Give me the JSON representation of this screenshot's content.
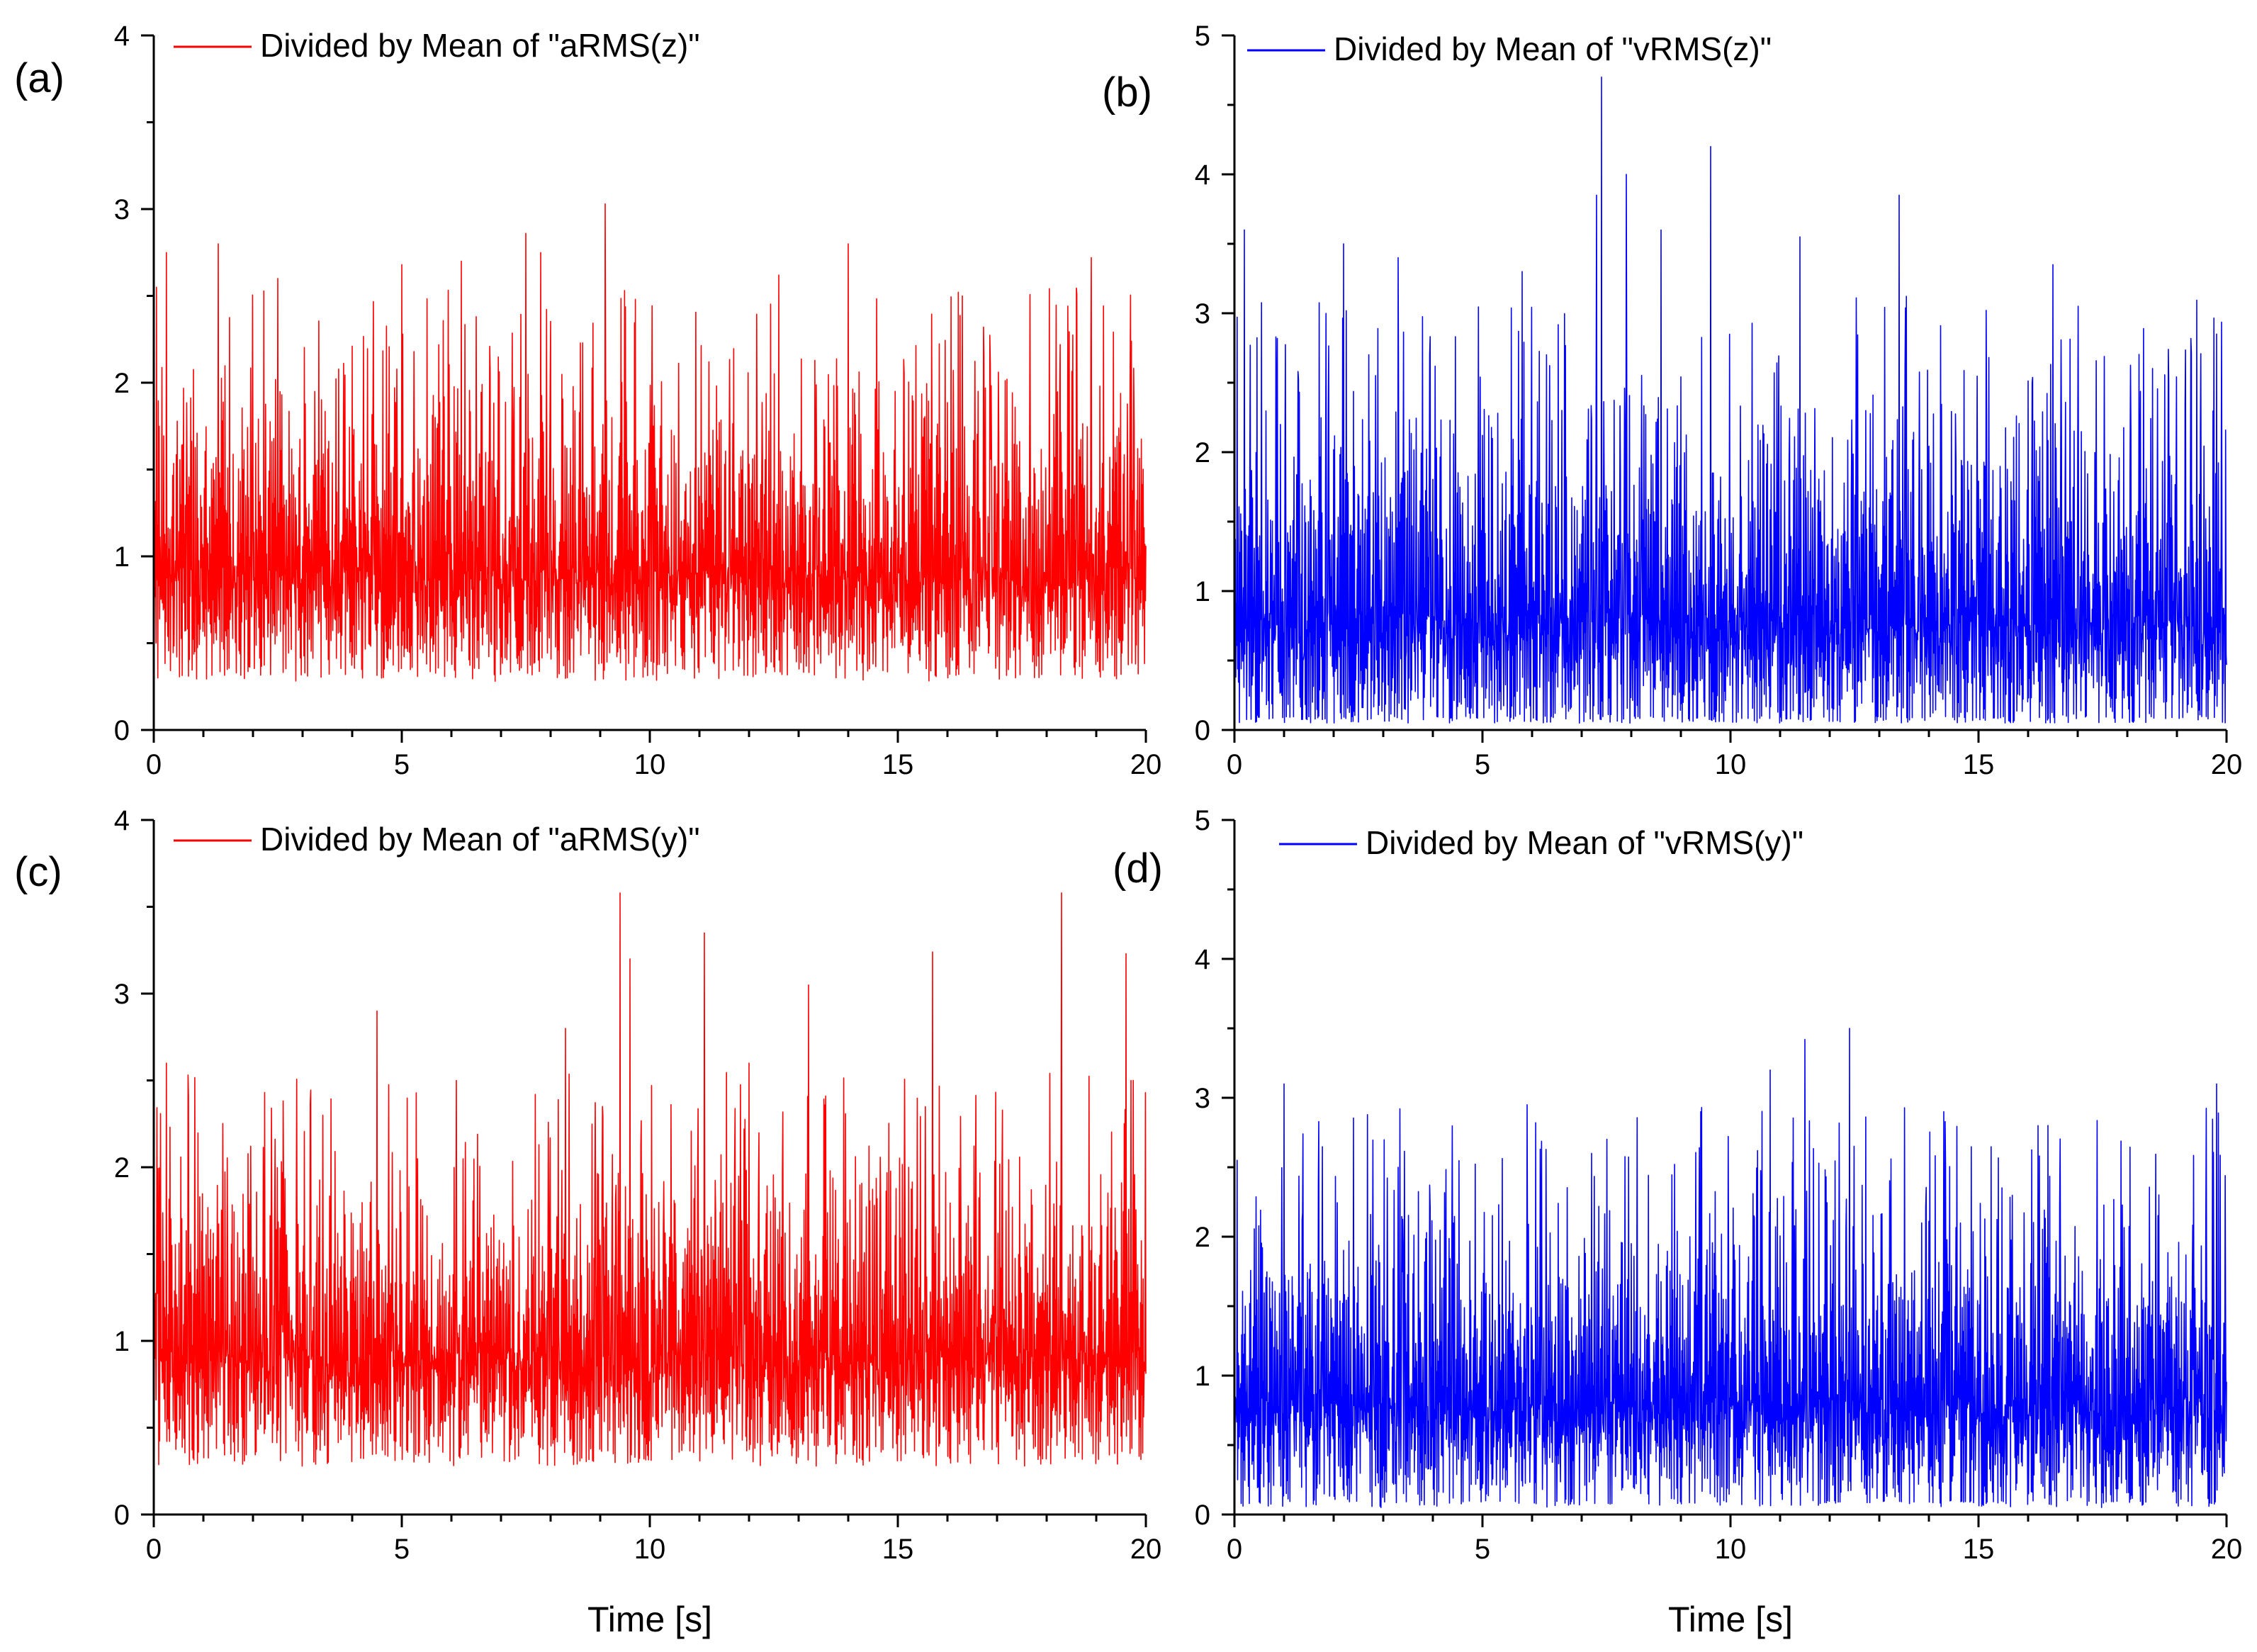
{
  "chart_data": [
    {
      "panel": "(a)",
      "type": "line",
      "color": "#ff0000",
      "legend": "Divided by Mean of \"aRMS(z)\"",
      "xlim": [
        0,
        20
      ],
      "ylim": [
        0,
        4
      ],
      "xticks": [
        "0",
        "5",
        "10",
        "15",
        "20"
      ],
      "yticks": [
        "0",
        "1",
        "2",
        "3",
        "4"
      ],
      "xlabel": "",
      "series": {
        "mean": 0.95,
        "spread": 0.42,
        "floor": 0.27,
        "ceiling": 2.1,
        "seed": 11,
        "peaks": [
          [
            0.25,
            2.75
          ],
          [
            1.3,
            2.8
          ],
          [
            2.5,
            2.6
          ],
          [
            5.0,
            2.68
          ],
          [
            6.2,
            2.7
          ],
          [
            7.5,
            2.86
          ],
          [
            7.8,
            2.75
          ],
          [
            9.1,
            3.03
          ],
          [
            14.0,
            2.8
          ],
          [
            18.9,
            2.72
          ],
          [
            0.05,
            2.55
          ],
          [
            12.6,
            2.62
          ],
          [
            16.3,
            2.5
          ]
        ]
      }
    },
    {
      "panel": "(b)",
      "type": "line",
      "color": "#0000ff",
      "legend": "Divided by Mean of \"vRMS(z)\"",
      "xlim": [
        0,
        20
      ],
      "ylim": [
        0,
        5
      ],
      "xticks": [
        "0",
        "5",
        "10",
        "15",
        "20"
      ],
      "yticks": [
        "0",
        "1",
        "2",
        "3",
        "4",
        "5"
      ],
      "xlabel": "",
      "series": {
        "mean": 0.85,
        "spread": 0.6,
        "floor": 0.05,
        "ceiling": 2.5,
        "seed": 23,
        "peaks": [
          [
            0.2,
            3.6
          ],
          [
            2.2,
            3.5
          ],
          [
            3.3,
            3.4
          ],
          [
            5.8,
            3.3
          ],
          [
            7.4,
            4.7
          ],
          [
            7.9,
            4.0
          ],
          [
            9.6,
            4.2
          ],
          [
            11.4,
            3.55
          ],
          [
            13.4,
            3.85
          ],
          [
            16.5,
            3.35
          ],
          [
            19.8,
            2.85
          ],
          [
            7.3,
            3.85
          ],
          [
            8.6,
            3.6
          ]
        ]
      }
    },
    {
      "panel": "(c)",
      "type": "line",
      "color": "#ff0000",
      "legend": "Divided by Mean of \"aRMS(y)\"",
      "xlim": [
        0,
        20
      ],
      "ylim": [
        0,
        4
      ],
      "xticks": [
        "0",
        "5",
        "10",
        "15",
        "20"
      ],
      "yticks": [
        "0",
        "1",
        "2",
        "3",
        "4"
      ],
      "xlabel": "Time [s]",
      "series": {
        "mean": 0.95,
        "spread": 0.42,
        "floor": 0.25,
        "ceiling": 2.2,
        "seed": 37,
        "peaks": [
          [
            0.25,
            2.6
          ],
          [
            4.5,
            2.9
          ],
          [
            8.3,
            2.8
          ],
          [
            9.4,
            3.58
          ],
          [
            9.6,
            3.2
          ],
          [
            11.1,
            3.35
          ],
          [
            13.2,
            3.05
          ],
          [
            15.7,
            3.24
          ],
          [
            18.3,
            3.58
          ],
          [
            19.6,
            3.23
          ],
          [
            19.7,
            2.5
          ],
          [
            12.0,
            2.6
          ],
          [
            6.1,
            2.5
          ]
        ]
      }
    },
    {
      "panel": "(d)",
      "type": "line",
      "color": "#0000ff",
      "legend": "Divided by Mean of \"vRMS(y)\"",
      "xlim": [
        0,
        20
      ],
      "ylim": [
        0,
        5
      ],
      "xticks": [
        "0",
        "5",
        "10",
        "15",
        "20"
      ],
      "yticks": [
        "0",
        "1",
        "2",
        "3",
        "4",
        "5"
      ],
      "xlabel": "Time [s]",
      "series": {
        "mean": 0.85,
        "spread": 0.55,
        "floor": 0.05,
        "ceiling": 2.6,
        "seed": 53,
        "peaks": [
          [
            0.05,
            2.55
          ],
          [
            1.0,
            3.1
          ],
          [
            5.9,
            2.95
          ],
          [
            9.4,
            2.9
          ],
          [
            10.8,
            3.2
          ],
          [
            11.5,
            3.42
          ],
          [
            12.4,
            3.5
          ],
          [
            14.3,
            2.9
          ],
          [
            19.8,
            3.1
          ],
          [
            3.3,
            2.5
          ],
          [
            7.2,
            2.6
          ],
          [
            16.2,
            2.8
          ]
        ]
      }
    }
  ]
}
